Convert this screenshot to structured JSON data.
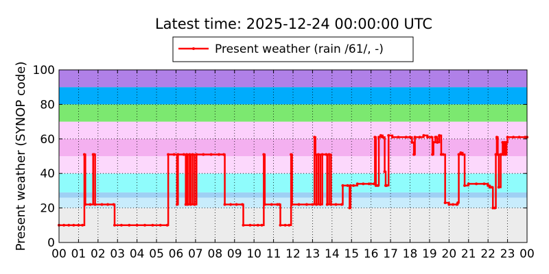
{
  "chart_data": {
    "type": "line",
    "title": "Latest time: 2025-12-24 00:00:00 UTC",
    "xlabel": "",
    "ylabel": "Present weather (SYNOP code)",
    "ylim": [
      0,
      100
    ],
    "xlim": [
      0,
      24
    ],
    "yticks": [
      "0",
      "20",
      "40",
      "60",
      "80",
      "100"
    ],
    "xticks": [
      "00",
      "01",
      "02",
      "03",
      "04",
      "05",
      "06",
      "07",
      "08",
      "09",
      "10",
      "11",
      "12",
      "13",
      "14",
      "15",
      "16",
      "17",
      "18",
      "19",
      "20",
      "21",
      "22",
      "23",
      "00"
    ],
    "grid": true,
    "legend": {
      "placement": "top-center",
      "entries": [
        "Present weather (rain /61/, -)"
      ]
    },
    "bands": [
      {
        "from": 0,
        "to": 20,
        "color": "#ececec"
      },
      {
        "from": 20,
        "to": 26,
        "color": "#c8ecfc"
      },
      {
        "from": 26,
        "to": 29,
        "color": "#9fd0f4"
      },
      {
        "from": 29,
        "to": 40,
        "color": "#8ffcfc"
      },
      {
        "from": 40,
        "to": 50,
        "color": "#fcd8fc"
      },
      {
        "from": 50,
        "to": 60,
        "color": "#f4b0f0"
      },
      {
        "from": 60,
        "to": 70,
        "color": "#fcd0fc"
      },
      {
        "from": 70,
        "to": 80,
        "color": "#7ce870"
      },
      {
        "from": 80,
        "to": 90,
        "color": "#00acfc"
      },
      {
        "from": 90,
        "to": 100,
        "color": "#b080e8"
      },
      {
        "from": 100,
        "to": 100,
        "color": "#f8f038"
      }
    ],
    "series": [
      {
        "name": "Present weather (rain /61/, -)",
        "color": "#ff0000",
        "points": [
          [
            0.0,
            10
          ],
          [
            0.25,
            10
          ],
          [
            0.5,
            10
          ],
          [
            0.75,
            10
          ],
          [
            1.0,
            10
          ],
          [
            1.2,
            10
          ],
          [
            1.3,
            51
          ],
          [
            1.35,
            22
          ],
          [
            1.6,
            22
          ],
          [
            1.75,
            51
          ],
          [
            1.8,
            51
          ],
          [
            1.85,
            22
          ],
          [
            2.2,
            22
          ],
          [
            2.5,
            22
          ],
          [
            2.8,
            22
          ],
          [
            2.85,
            10
          ],
          [
            3.2,
            10
          ],
          [
            3.6,
            10
          ],
          [
            4.0,
            10
          ],
          [
            4.4,
            10
          ],
          [
            4.8,
            10
          ],
          [
            5.2,
            10
          ],
          [
            5.55,
            10
          ],
          [
            5.6,
            51
          ],
          [
            5.9,
            51
          ],
          [
            6.05,
            22
          ],
          [
            6.1,
            51
          ],
          [
            6.4,
            51
          ],
          [
            6.5,
            22
          ],
          [
            6.55,
            51
          ],
          [
            6.6,
            22
          ],
          [
            6.7,
            51
          ],
          [
            6.75,
            22
          ],
          [
            6.85,
            51
          ],
          [
            6.95,
            22
          ],
          [
            7.05,
            51
          ],
          [
            7.4,
            51
          ],
          [
            7.8,
            51
          ],
          [
            8.2,
            51
          ],
          [
            8.45,
            51
          ],
          [
            8.5,
            22
          ],
          [
            8.8,
            22
          ],
          [
            9.1,
            22
          ],
          [
            9.4,
            22
          ],
          [
            9.45,
            10
          ],
          [
            9.8,
            10
          ],
          [
            10.2,
            10
          ],
          [
            10.4,
            10
          ],
          [
            10.5,
            51
          ],
          [
            10.55,
            22
          ],
          [
            10.9,
            22
          ],
          [
            11.2,
            22
          ],
          [
            11.3,
            22
          ],
          [
            11.35,
            10
          ],
          [
            11.6,
            10
          ],
          [
            11.8,
            10
          ],
          [
            11.9,
            51
          ],
          [
            11.95,
            22
          ],
          [
            12.3,
            22
          ],
          [
            12.7,
            22
          ],
          [
            13.0,
            22
          ],
          [
            13.1,
            61
          ],
          [
            13.15,
            51
          ],
          [
            13.2,
            22
          ],
          [
            13.3,
            51
          ],
          [
            13.4,
            22
          ],
          [
            13.5,
            51
          ],
          [
            13.7,
            51
          ],
          [
            13.75,
            22
          ],
          [
            13.85,
            51
          ],
          [
            13.95,
            22
          ],
          [
            14.2,
            22
          ],
          [
            14.5,
            22
          ],
          [
            14.55,
            33
          ],
          [
            14.8,
            33
          ],
          [
            14.9,
            20
          ],
          [
            14.95,
            33
          ],
          [
            15.1,
            33
          ],
          [
            15.3,
            34
          ],
          [
            15.6,
            34
          ],
          [
            15.9,
            34
          ],
          [
            16.15,
            34
          ],
          [
            16.2,
            61
          ],
          [
            16.25,
            33
          ],
          [
            16.35,
            33
          ],
          [
            16.4,
            61
          ],
          [
            16.5,
            62
          ],
          [
            16.6,
            61
          ],
          [
            16.7,
            41
          ],
          [
            16.75,
            33
          ],
          [
            16.8,
            33
          ],
          [
            16.9,
            62
          ],
          [
            17.1,
            61
          ],
          [
            17.4,
            61
          ],
          [
            17.8,
            61
          ],
          [
            18.0,
            61
          ],
          [
            18.1,
            58
          ],
          [
            18.2,
            51
          ],
          [
            18.25,
            61
          ],
          [
            18.5,
            61
          ],
          [
            18.7,
            62
          ],
          [
            18.9,
            61
          ],
          [
            19.1,
            61
          ],
          [
            19.15,
            51
          ],
          [
            19.2,
            58
          ],
          [
            19.3,
            61
          ],
          [
            19.35,
            61
          ],
          [
            19.4,
            58
          ],
          [
            19.5,
            62
          ],
          [
            19.6,
            51
          ],
          [
            19.7,
            51
          ],
          [
            19.8,
            23
          ],
          [
            20.0,
            22
          ],
          [
            20.2,
            22
          ],
          [
            20.4,
            22
          ],
          [
            20.45,
            23
          ],
          [
            20.5,
            51
          ],
          [
            20.6,
            52
          ],
          [
            20.7,
            51
          ],
          [
            20.8,
            33
          ],
          [
            21.0,
            34
          ],
          [
            21.4,
            34
          ],
          [
            21.8,
            34
          ],
          [
            22.0,
            33
          ],
          [
            22.1,
            32
          ],
          [
            22.2,
            32
          ],
          [
            22.25,
            20
          ],
          [
            22.35,
            20
          ],
          [
            22.4,
            51
          ],
          [
            22.45,
            61
          ],
          [
            22.5,
            51
          ],
          [
            22.55,
            32
          ],
          [
            22.65,
            51
          ],
          [
            22.7,
            51
          ],
          [
            22.75,
            58
          ],
          [
            22.8,
            51
          ],
          [
            22.85,
            58
          ],
          [
            22.9,
            51
          ],
          [
            22.95,
            58
          ],
          [
            23.0,
            61
          ],
          [
            23.3,
            61
          ],
          [
            23.6,
            61
          ],
          [
            23.9,
            61
          ],
          [
            24.0,
            61
          ]
        ]
      }
    ]
  }
}
